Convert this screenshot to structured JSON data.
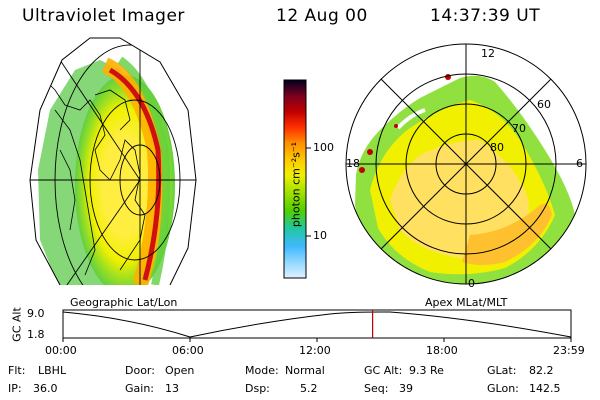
{
  "header": {
    "instrument": "Ultraviolet Imager",
    "date": "12 Aug 00",
    "time": "14:37:39 UT"
  },
  "left_panel": {
    "caption": "Geographic Lat/Lon"
  },
  "right_panel": {
    "caption": "Apex MLat/MLT",
    "mlt_labels": [
      "12",
      "18",
      "6",
      "0"
    ],
    "mlat_labels": [
      "60",
      "70",
      "80"
    ]
  },
  "colorbar": {
    "unit_label": "photon cm⁻²s⁻¹",
    "ticks": [
      "100",
      "10"
    ],
    "colors": [
      "#000020",
      "#7a0020",
      "#c00000",
      "#ff3000",
      "#ff9000",
      "#ffc800",
      "#f0f000",
      "#a0e000",
      "#50d000",
      "#20c8a0",
      "#40b8ff",
      "#90d8ff",
      "#e0f0ff"
    ]
  },
  "timeline": {
    "y_axis_label": "GC Alt",
    "y_ticks": [
      "9.0",
      "1.8"
    ],
    "x_ticks": [
      "00:00",
      "06:00",
      "12:00",
      "18:00",
      "23:59"
    ],
    "current_marker_time": "14:37",
    "marker_color": "#c00000"
  },
  "info": {
    "row1": [
      {
        "key": "Flt:",
        "value": "LBHL"
      },
      {
        "key": "Door:",
        "value": "Open"
      },
      {
        "key": "Mode:",
        "value": "Normal"
      },
      {
        "key": "GC Alt:",
        "value": "9.3 Re"
      },
      {
        "key": "GLat:",
        "value": "82.2"
      }
    ],
    "row2": [
      {
        "key": "IP:",
        "value": "36.0"
      },
      {
        "key": "Gain:",
        "value": "13"
      },
      {
        "key": "Dsp:",
        "value": "5.2"
      },
      {
        "key": "Seq:",
        "value": "39"
      },
      {
        "key": "GLon:",
        "value": "142.5"
      }
    ]
  }
}
